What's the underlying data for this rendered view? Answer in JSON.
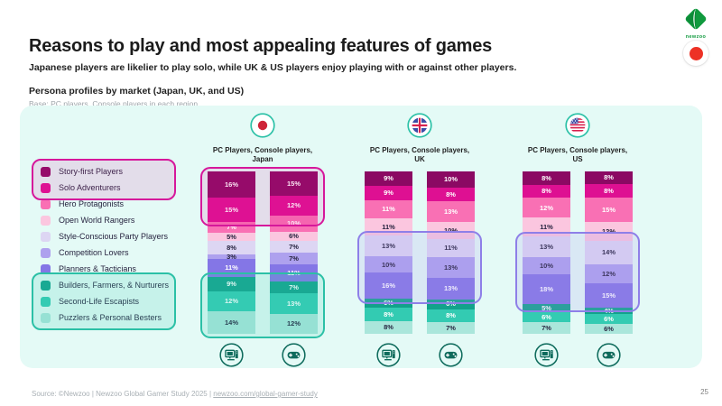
{
  "page": {
    "title": "Reasons to play and most appealing features of games",
    "subtitle": "Japanese players are likelier to play solo, while UK & US players enjoy playing with or against other players.",
    "section_title": "Persona profiles by market (Japan, UK, and US)",
    "base_note": "Base: PC players, Console players in each region",
    "source_prefix": "Source: ©Newzoo | Newzoo Global Gamer Study 2025 | ",
    "source_link": "newzoo.com/global-gamer-study",
    "page_number": "25",
    "brand": "newzoo",
    "accent_teal": "#2CC1A7",
    "panel_bg": "#E4FAF6"
  },
  "chart_data": {
    "type": "bar",
    "stacked": true,
    "orientation": "vertical",
    "value_unit": "%",
    "personas": [
      {
        "label": "Story-first Players",
        "color": "#8B0963",
        "text_color": "#FFFFFF"
      },
      {
        "label": "Solo Adventurers",
        "color": "#DE1092",
        "text_color": "#FFFFFF"
      },
      {
        "label": "Hero Protagonists",
        "color": "#F970B4",
        "text_color": "#FFFFFF"
      },
      {
        "label": "Open World Rangers",
        "color": "#FBC6DF",
        "text_color": "#26233F"
      },
      {
        "label": "Style-Conscious Party Players",
        "color": "#DDD6F3",
        "text_color": "#26233F"
      },
      {
        "label": "Competition Lovers",
        "color": "#AEA1EE",
        "text_color": "#26233F"
      },
      {
        "label": "Planners & Tacticians",
        "color": "#8476E6",
        "text_color": "#FFFFFF"
      },
      {
        "label": "Builders, Farmers, & Nurturers",
        "color": "#12A28B",
        "text_color": "#FFFFFF"
      },
      {
        "label": "Second-Life Escapists",
        "color": "#33CBB2",
        "text_color": "#FFFFFF"
      },
      {
        "label": "Puzzlers & Personal Besters",
        "color": "#AAE6DB",
        "text_color": "#26233F"
      }
    ],
    "legend_groups": [
      {
        "highlight": "pink",
        "from": 0,
        "to": 1
      },
      {
        "highlight": "none",
        "from": 2,
        "to": 6
      },
      {
        "highlight": "teal",
        "from": 7,
        "to": 9
      }
    ],
    "highlight_styles": {
      "pink": {
        "border": "#D6179B",
        "fill": "rgba(224,30,154,0.13)"
      },
      "teal": {
        "border": "#2BC0A6",
        "fill": "rgba(62,206,183,0.18)"
      },
      "purple": {
        "border": "#8E7FE8",
        "fill": "rgba(164,150,240,0.18)"
      }
    },
    "markets": [
      {
        "id": "japan",
        "flag": "japan-flag-icon",
        "label_lines": [
          "PC Players, Console players,",
          "Japan"
        ],
        "columns": [
          {
            "platform": "PC",
            "icon": "desktop-icon",
            "values": [
              16,
              15,
              7,
              5,
              8,
              3,
              11,
              9,
              12,
              14
            ]
          },
          {
            "platform": "Console",
            "icon": "gamepad-icon",
            "values": [
              15,
              12,
              10,
              6,
              7,
              7,
              11,
              7,
              13,
              12
            ]
          }
        ],
        "bar_highlights": [
          {
            "style": "pink",
            "from": 0,
            "to": 1
          },
          {
            "style": "teal",
            "from": 7,
            "to": 9
          }
        ]
      },
      {
        "id": "uk",
        "flag": "uk-flag-icon",
        "label_lines": [
          "PC Players, Console players,",
          "UK"
        ],
        "columns": [
          {
            "platform": "PC",
            "icon": "desktop-icon",
            "values": [
              9,
              9,
              11,
              11,
              13,
              10,
              16,
              6,
              8,
              8
            ]
          },
          {
            "platform": "Console",
            "icon": "gamepad-icon",
            "values": [
              10,
              8,
              13,
              10,
              11,
              13,
              13,
              6,
              8,
              7
            ]
          }
        ],
        "bar_highlights": [
          {
            "style": "purple",
            "from": 4,
            "to": 6
          }
        ]
      },
      {
        "id": "us",
        "flag": "us-flag-icon",
        "label_lines": [
          "PC Players, Console players,",
          "US"
        ],
        "columns": [
          {
            "platform": "PC",
            "icon": "desktop-icon",
            "values": [
              8,
              8,
              12,
              11,
              13,
              10,
              18,
              5,
              6,
              7
            ]
          },
          {
            "platform": "Console",
            "icon": "gamepad-icon",
            "values": [
              8,
              8,
              15,
              12,
              14,
              12,
              15,
              4,
              6,
              6
            ]
          }
        ],
        "bar_highlights": [
          {
            "style": "purple",
            "from": 4,
            "to": 6
          }
        ]
      }
    ]
  }
}
